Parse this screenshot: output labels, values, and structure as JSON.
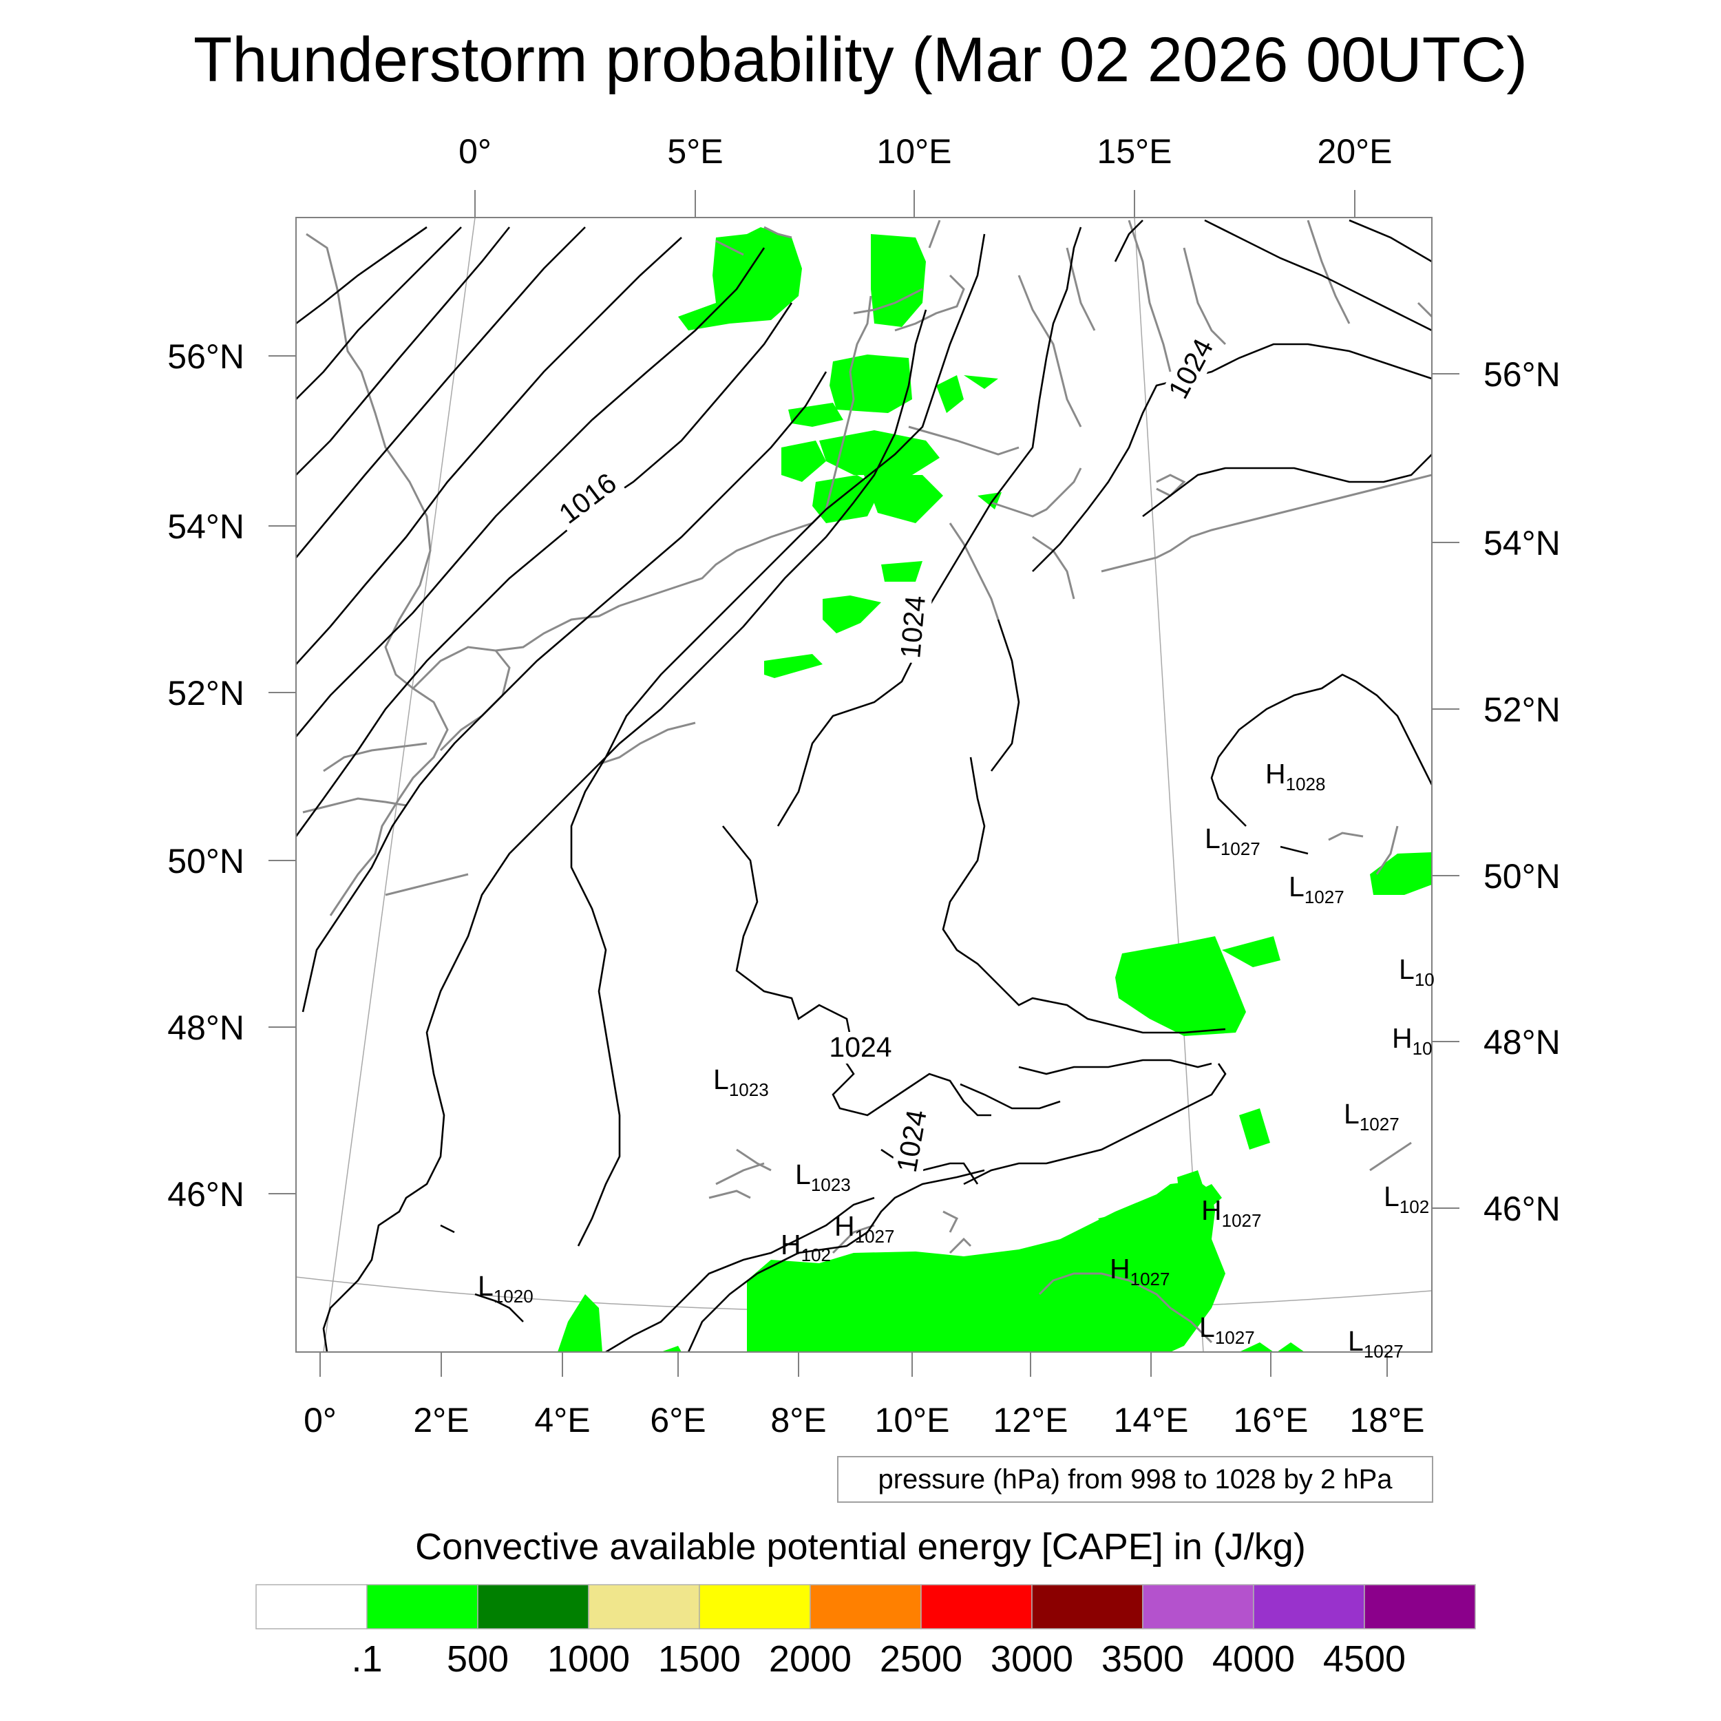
{
  "title": "Thunderstorm probability (Mar 02 2026 00UTC)",
  "top_lon_labels": [
    "0°",
    "5°E",
    "10°E",
    "15°E",
    "20°E"
  ],
  "bottom_lon_labels": [
    "0°",
    "2°E",
    "4°E",
    "6°E",
    "8°E",
    "10°E",
    "12°E",
    "14°E",
    "16°E",
    "18°E"
  ],
  "left_lat_labels": [
    "56°N",
    "54°N",
    "52°N",
    "50°N",
    "48°N",
    "46°N"
  ],
  "right_lat_labels": [
    "56°N",
    "54°N",
    "52°N",
    "50°N",
    "48°N",
    "46°N"
  ],
  "contour_labels": [
    "1016",
    "1024",
    "1024",
    "1024",
    "1024"
  ],
  "pressure_centers": [
    {
      "kind": "H",
      "value": "1028"
    },
    {
      "kind": "L",
      "value": "1027"
    },
    {
      "kind": "L",
      "value": "1027"
    },
    {
      "kind": "L",
      "value": "10"
    },
    {
      "kind": "H",
      "value": "10"
    },
    {
      "kind": "L",
      "value": "1023"
    },
    {
      "kind": "L",
      "value": "1023"
    },
    {
      "kind": "L",
      "value": "1027"
    },
    {
      "kind": "L",
      "value": "102"
    },
    {
      "kind": "H",
      "value": "1027"
    },
    {
      "kind": "H",
      "value": "102"
    },
    {
      "kind": "H",
      "value": "1027"
    },
    {
      "kind": "H",
      "value": "1027"
    },
    {
      "kind": "L",
      "value": "1020"
    },
    {
      "kind": "L",
      "value": "1027"
    },
    {
      "kind": "L",
      "value": "1027"
    }
  ],
  "contour_info": "pressure (hPa) from 998 to 1028 by 2 hPa",
  "colorbar": {
    "title": "Convective available potential energy [CAPE] in (J/kg)",
    "colors": [
      "#ffffff",
      "#00ff00",
      "#008000",
      "#f0e68c",
      "#ffff00",
      "#ff8000",
      "#ff0000",
      "#8b0000",
      "#b452cd",
      "#9932cc",
      "#8b008b"
    ],
    "labels": [
      ".1",
      "500",
      "1000",
      "1500",
      "2000",
      "2500",
      "3000",
      "3500",
      "4000",
      "4500"
    ]
  },
  "colors": {
    "cape_fill": "#00ff00",
    "isobar": "#000000",
    "coastline": "#808080",
    "graticule": "#a0a0a0"
  }
}
